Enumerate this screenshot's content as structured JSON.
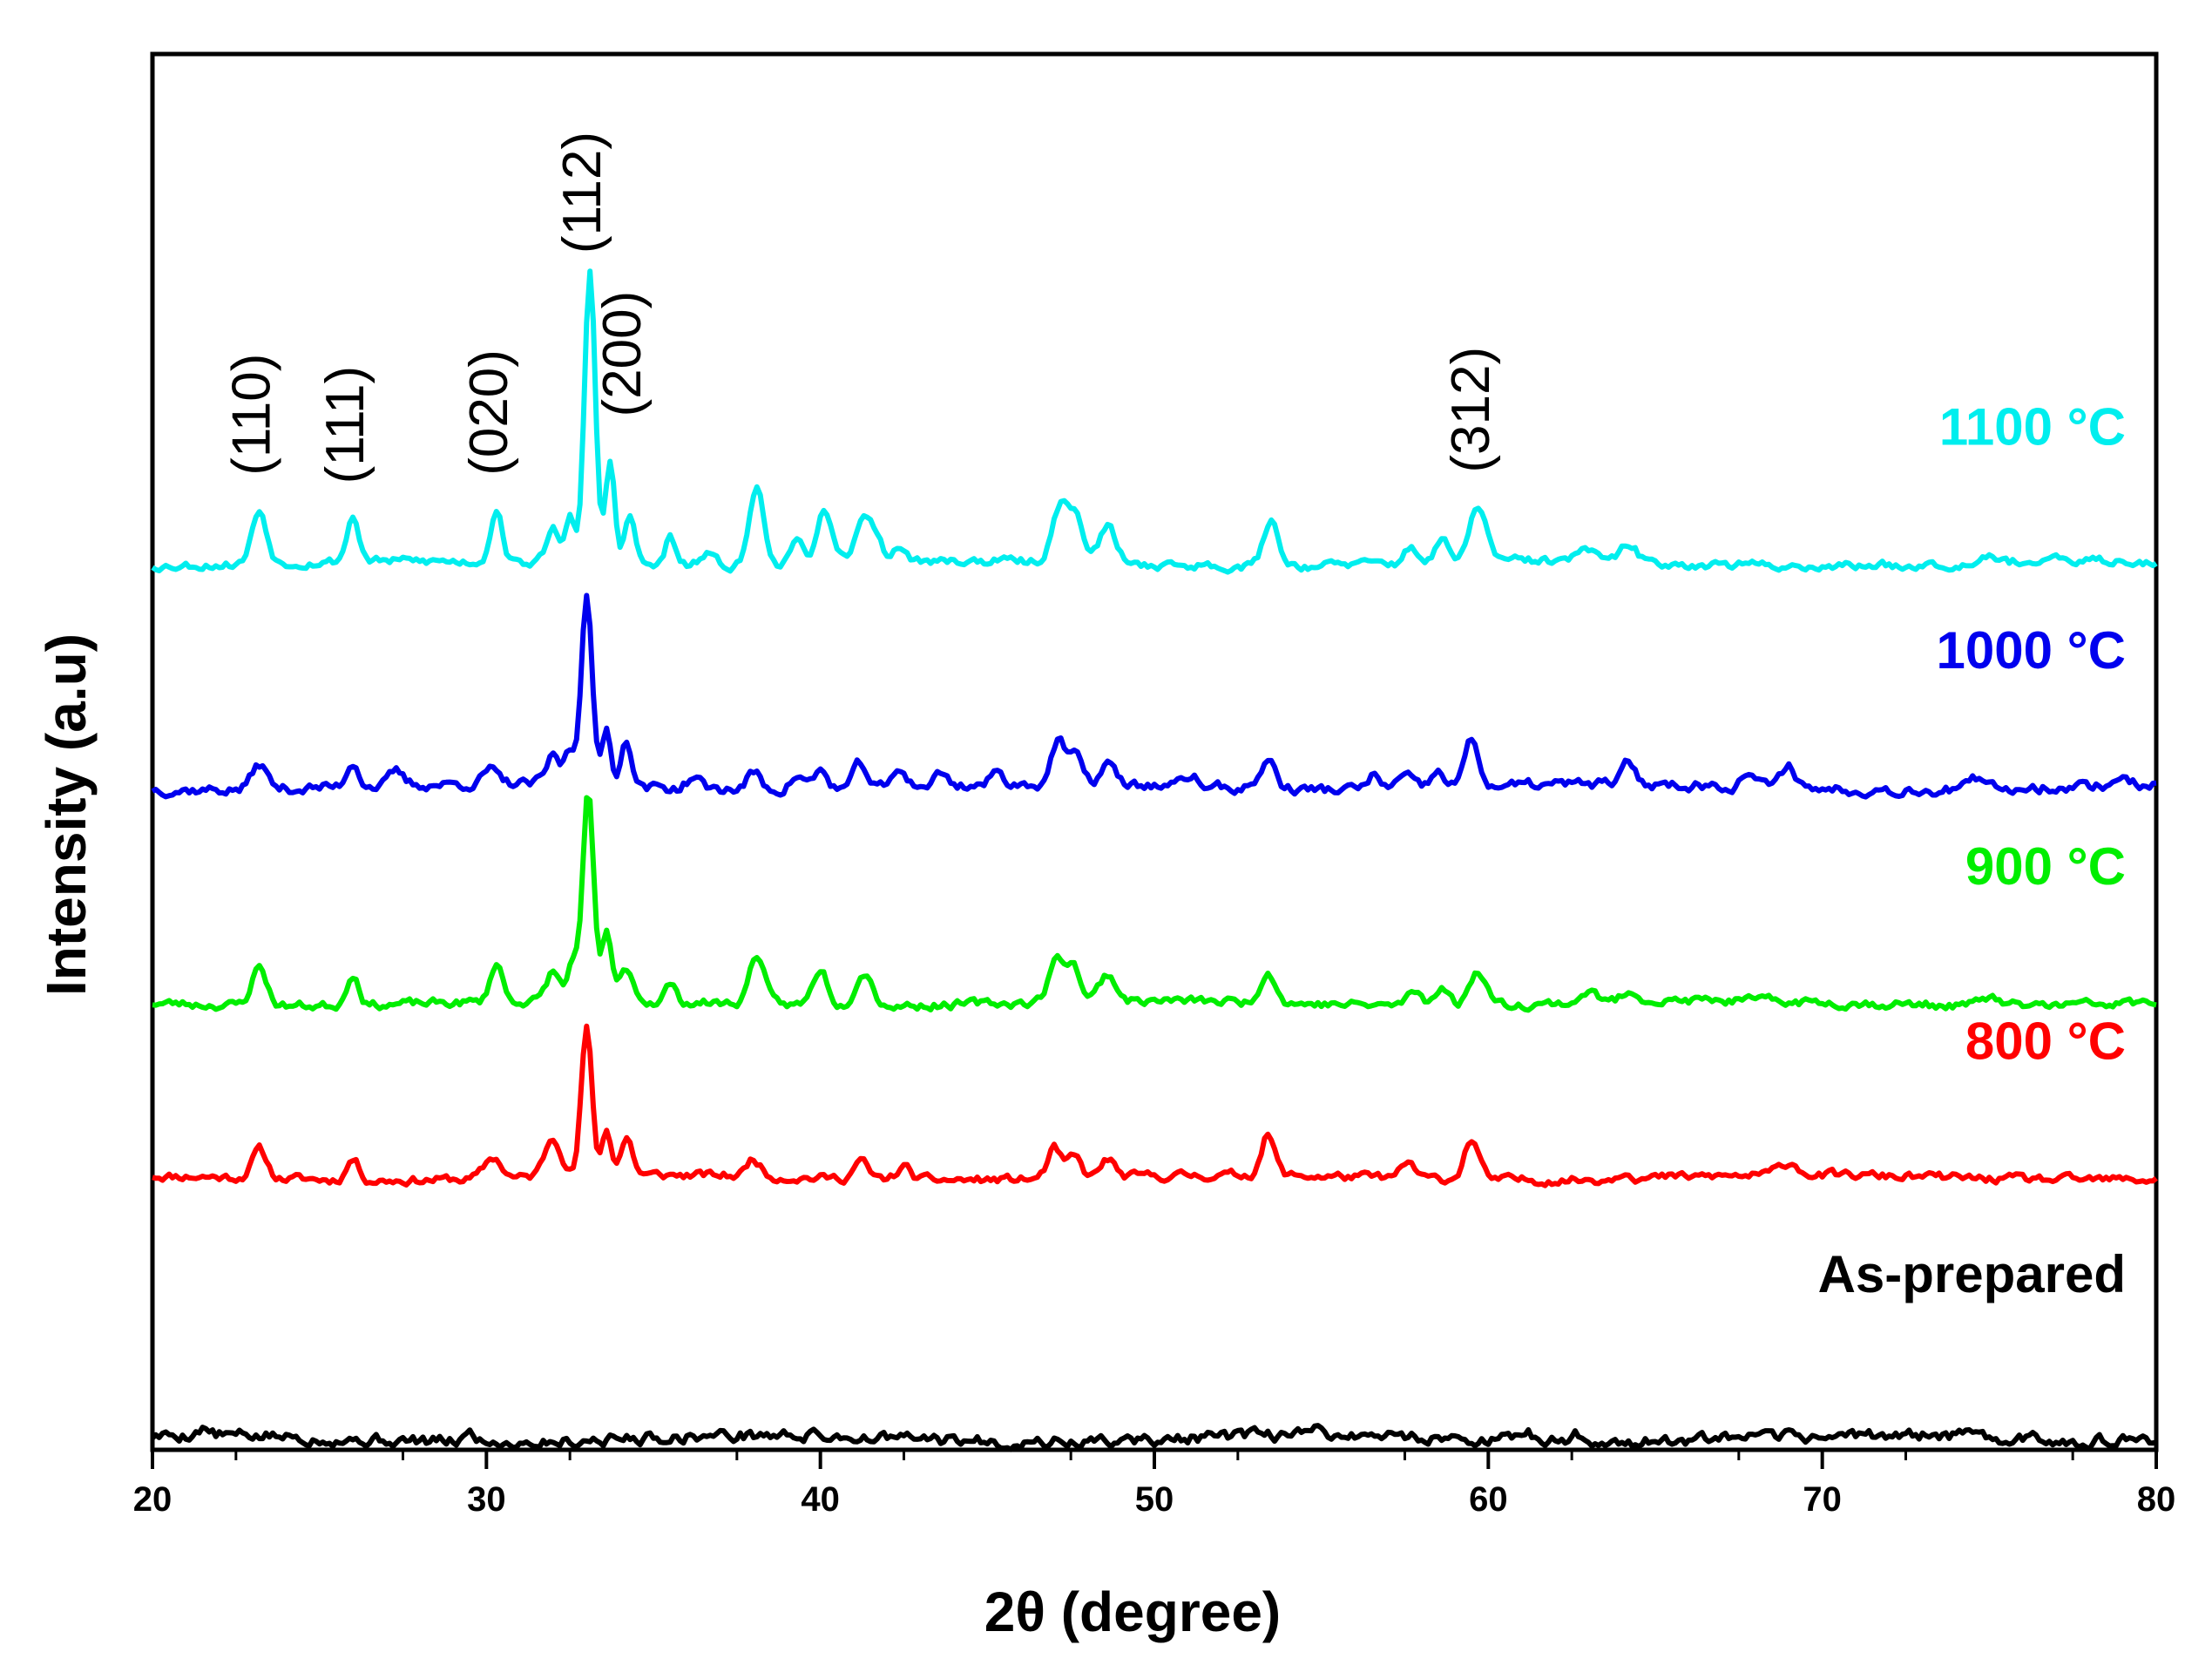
{
  "chart_data": {
    "type": "line",
    "title": "",
    "xlabel": "2θ (degree)",
    "ylabel": "Intensity (a.u)",
    "xlim": [
      20,
      80
    ],
    "ylim": [
      0,
      100
    ],
    "x_ticks": [
      "20",
      "30",
      "40",
      "50",
      "60",
      "70",
      "80"
    ],
    "y_ticks": [],
    "grid": false,
    "legend": "none",
    "series": [
      {
        "name": "As-prepared",
        "label": "As-prepared",
        "color": "#000000",
        "baseline": 0.8,
        "noise": 0.7,
        "seed": 5,
        "peaks": [
          [
            21.5,
            0.5,
            0.2
          ],
          [
            29.5,
            0.6,
            0.2
          ],
          [
            55,
            0.5,
            0.2
          ],
          [
            61.2,
            0.4,
            0.2
          ],
          [
            62.7,
            0.5,
            0.2
          ]
        ]
      },
      {
        "name": "800 °C",
        "label": "800 °C",
        "color": "#ff0000",
        "baseline": 19.5,
        "noise": 0.5,
        "seed": 11,
        "peaks": [
          [
            23.2,
            2.0,
            0.22
          ],
          [
            26.0,
            1.5,
            0.18
          ],
          [
            30.2,
            1.5,
            0.25
          ],
          [
            32.0,
            2.9,
            0.25
          ],
          [
            33.0,
            10.5,
            0.16
          ],
          [
            33.6,
            3.3,
            0.14
          ],
          [
            34.2,
            2.7,
            0.18
          ],
          [
            38.0,
            1.3,
            0.2
          ],
          [
            41.2,
            1.3,
            0.2
          ],
          [
            42.5,
            0.9,
            0.2
          ],
          [
            47.0,
            2.1,
            0.2
          ],
          [
            47.6,
            1.5,
            0.2
          ],
          [
            48.6,
            1.3,
            0.2
          ],
          [
            53.4,
            2.9,
            0.2
          ],
          [
            57.6,
            1.1,
            0.2
          ],
          [
            59.5,
            2.9,
            0.22
          ],
          [
            64.1,
            0.6,
            0.2
          ],
          [
            69.0,
            0.9,
            0.3
          ]
        ]
      },
      {
        "name": "900 °C",
        "label": "900 °C",
        "color": "#00ee00",
        "baseline": 32.0,
        "noise": 0.5,
        "seed": 23,
        "peaks": [
          [
            23.2,
            2.8,
            0.22
          ],
          [
            26.0,
            2.3,
            0.18
          ],
          [
            30.3,
            2.8,
            0.18
          ],
          [
            32.0,
            2.1,
            0.2
          ],
          [
            32.6,
            3.0,
            0.15
          ],
          [
            33.05,
            14.8,
            0.16
          ],
          [
            33.6,
            5.0,
            0.14
          ],
          [
            34.2,
            2.3,
            0.2
          ],
          [
            35.5,
            1.3,
            0.15
          ],
          [
            38.1,
            3.6,
            0.22
          ],
          [
            40.0,
            2.6,
            0.22
          ],
          [
            41.3,
            2.5,
            0.25
          ],
          [
            47.1,
            3.0,
            0.25
          ],
          [
            47.6,
            2.3,
            0.2
          ],
          [
            48.6,
            1.9,
            0.25
          ],
          [
            53.4,
            2.3,
            0.22
          ],
          [
            57.8,
            1.0,
            0.22
          ],
          [
            58.6,
            1.4,
            0.2
          ],
          [
            59.7,
            2.5,
            0.25
          ],
          [
            63.0,
            0.8,
            0.25
          ],
          [
            64.3,
            0.8,
            0.25
          ],
          [
            75.0,
            0.6,
            0.25
          ]
        ]
      },
      {
        "name": "1000 °C",
        "label": "1000 °C",
        "color": "#0000ee",
        "baseline": 47.5,
        "noise": 0.6,
        "seed": 37,
        "peaks": [
          [
            23.2,
            1.8,
            0.22
          ],
          [
            26.0,
            1.8,
            0.18
          ],
          [
            27.3,
            0.9,
            0.2
          ],
          [
            30.1,
            1.0,
            0.2
          ],
          [
            32.0,
            2.0,
            0.2
          ],
          [
            32.5,
            2.4,
            0.15
          ],
          [
            33.0,
            14.0,
            0.16
          ],
          [
            33.6,
            4.0,
            0.14
          ],
          [
            34.2,
            3.4,
            0.16
          ],
          [
            36.2,
            0.8,
            0.2
          ],
          [
            38.0,
            1.2,
            0.2
          ],
          [
            39.3,
            1.0,
            0.2
          ],
          [
            40.0,
            1.3,
            0.2
          ],
          [
            41.2,
            1.7,
            0.2
          ],
          [
            42.4,
            1.3,
            0.2
          ],
          [
            43.6,
            0.9,
            0.2
          ],
          [
            45.3,
            0.8,
            0.2
          ],
          [
            47.1,
            3.0,
            0.2
          ],
          [
            47.6,
            2.1,
            0.2
          ],
          [
            48.6,
            1.6,
            0.2
          ],
          [
            51.1,
            0.8,
            0.2
          ],
          [
            53.4,
            2.1,
            0.22
          ],
          [
            56.6,
            1.0,
            0.2
          ],
          [
            57.5,
            0.9,
            0.2
          ],
          [
            58.5,
            1.1,
            0.2
          ],
          [
            59.5,
            3.3,
            0.22
          ],
          [
            64.2,
            1.4,
            0.2
          ],
          [
            67.8,
            1.0,
            0.2
          ],
          [
            69.0,
            1.7,
            0.2
          ],
          [
            74.6,
            0.6,
            0.2
          ],
          [
            79.0,
            0.6,
            0.2
          ]
        ]
      },
      {
        "name": "1100 °C",
        "label": "1100 °C",
        "color": "#00eeee",
        "baseline": 63.5,
        "noise": 0.5,
        "seed": 53,
        "peaks": [
          [
            23.2,
            3.8,
            0.22
          ],
          [
            26.0,
            3.2,
            0.18
          ],
          [
            30.3,
            3.8,
            0.18
          ],
          [
            32.0,
            2.5,
            0.2
          ],
          [
            32.5,
            3.5,
            0.14
          ],
          [
            33.1,
            21.0,
            0.16
          ],
          [
            33.7,
            7.5,
            0.14
          ],
          [
            34.3,
            3.5,
            0.16
          ],
          [
            35.5,
            2.0,
            0.15
          ],
          [
            36.6,
            0.8,
            0.2
          ],
          [
            38.1,
            5.5,
            0.22
          ],
          [
            39.3,
            1.4,
            0.2
          ],
          [
            40.1,
            3.7,
            0.22
          ],
          [
            41.4,
            3.4,
            0.3
          ],
          [
            42.4,
            1.0,
            0.2
          ],
          [
            47.2,
            4.2,
            0.25
          ],
          [
            47.7,
            3.0,
            0.2
          ],
          [
            48.6,
            2.6,
            0.25
          ],
          [
            53.5,
            3.3,
            0.22
          ],
          [
            57.7,
            1.1,
            0.2
          ],
          [
            58.6,
            1.5,
            0.2
          ],
          [
            59.7,
            4.0,
            0.25
          ],
          [
            62.9,
            0.9,
            0.25
          ],
          [
            64.2,
            1.2,
            0.25
          ],
          [
            75.0,
            0.7,
            0.25
          ]
        ]
      }
    ],
    "annotations": [
      {
        "text": "(110)",
        "x": 23.2
      },
      {
        "text": "(111)",
        "x": 26.0
      },
      {
        "text": "(020)",
        "x": 30.3
      },
      {
        "text": "(112)",
        "x": 33.1
      },
      {
        "text": "(200)",
        "x": 34.3
      },
      {
        "text": "(312)",
        "x": 59.7
      }
    ]
  }
}
